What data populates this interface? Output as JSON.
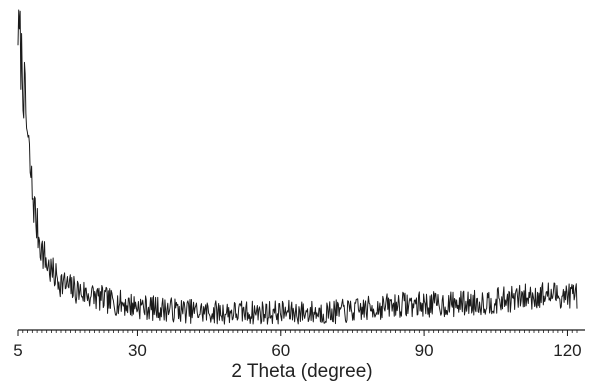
{
  "chart_data": {
    "type": "line",
    "title": "",
    "xlabel": "2 Theta (degree)",
    "ylabel": "",
    "xlim": [
      5,
      122
    ],
    "ylim": [
      0,
      100
    ],
    "x_ticks": [
      5,
      30,
      60,
      90,
      120
    ],
    "x_tick_labels": [
      "5",
      "30",
      "60",
      "90",
      "120"
    ],
    "y_ticks_shown": false,
    "grid": false,
    "legend": "none",
    "line_color": "#1a1a1a",
    "series": [
      {
        "profile": {
          "x": [
            5,
            6,
            7,
            8,
            9,
            10,
            11,
            12,
            14,
            16,
            18,
            20,
            24,
            28,
            32,
            36,
            40,
            45,
            50,
            55,
            60,
            65,
            70,
            75,
            80,
            85,
            90,
            95,
            100,
            105,
            110,
            115,
            122
          ],
          "y": [
            96,
            80,
            60,
            43,
            32,
            25,
            21,
            18,
            15,
            13,
            12,
            11,
            9,
            8,
            7,
            6.5,
            6,
            5.5,
            5.5,
            5.5,
            5.5,
            5.5,
            5.5,
            6,
            7,
            8,
            8,
            8,
            8.5,
            9,
            10,
            11,
            11
          ]
        },
        "noise_amplitude": 3.2,
        "step": 0.15,
        "seed": 7
      }
    ]
  }
}
